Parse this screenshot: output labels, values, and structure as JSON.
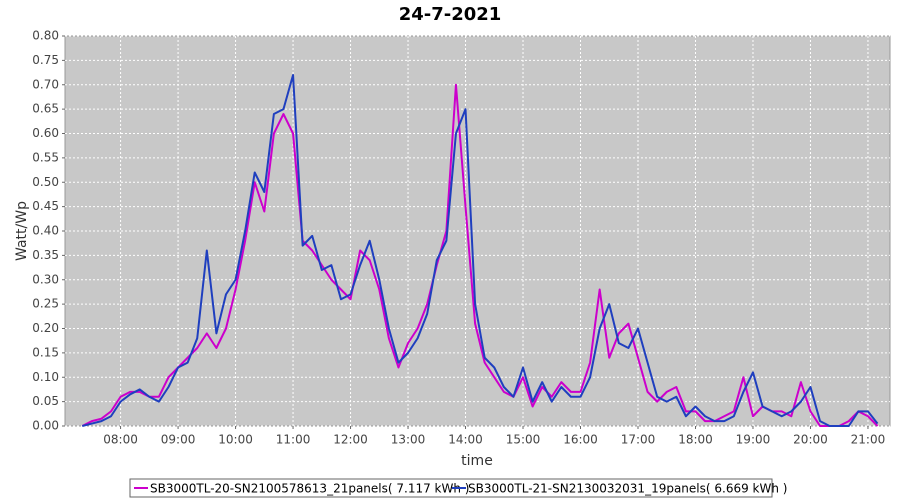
{
  "chart_data": {
    "type": "line",
    "title": "24-7-2021",
    "x_label": "time",
    "y_label": "Watt/Wp",
    "x": [
      "07:20",
      "07:30",
      "07:40",
      "07:50",
      "08:00",
      "08:10",
      "08:20",
      "08:30",
      "08:40",
      "08:50",
      "09:00",
      "09:10",
      "09:20",
      "09:30",
      "09:40",
      "09:50",
      "10:00",
      "10:10",
      "10:20",
      "10:30",
      "10:40",
      "10:50",
      "11:00",
      "11:10",
      "11:20",
      "11:30",
      "11:40",
      "11:50",
      "12:00",
      "12:10",
      "12:20",
      "12:30",
      "12:40",
      "12:50",
      "13:00",
      "13:10",
      "13:20",
      "13:30",
      "13:40",
      "13:50",
      "14:00",
      "14:10",
      "14:20",
      "14:30",
      "14:40",
      "14:50",
      "15:00",
      "15:10",
      "15:20",
      "15:30",
      "15:40",
      "15:50",
      "16:00",
      "16:10",
      "16:20",
      "16:30",
      "16:40",
      "16:50",
      "17:00",
      "17:10",
      "17:20",
      "17:30",
      "17:40",
      "17:50",
      "18:00",
      "18:10",
      "18:20",
      "18:30",
      "18:40",
      "18:50",
      "19:00",
      "19:10",
      "19:20",
      "19:30",
      "19:40",
      "19:50",
      "20:00",
      "20:10",
      "20:20",
      "20:30",
      "20:40",
      "20:50",
      "21:00",
      "21:10"
    ],
    "series": [
      {
        "name": "SB3000TL-20-SN2100578613_21panels( 7.117 kWh )",
        "color": "#cc00cc",
        "values": [
          0,
          0.01,
          0.015,
          0.03,
          0.06,
          0.07,
          0.07,
          0.06,
          0.06,
          0.1,
          0.12,
          0.14,
          0.16,
          0.19,
          0.16,
          0.2,
          0.28,
          0.38,
          0.5,
          0.44,
          0.6,
          0.64,
          0.6,
          0.38,
          0.36,
          0.33,
          0.3,
          0.28,
          0.26,
          0.36,
          0.34,
          0.28,
          0.18,
          0.12,
          0.17,
          0.2,
          0.25,
          0.33,
          0.4,
          0.7,
          0.45,
          0.21,
          0.13,
          0.1,
          0.07,
          0.06,
          0.1,
          0.04,
          0.08,
          0.06,
          0.09,
          0.07,
          0.07,
          0.13,
          0.28,
          0.14,
          0.19,
          0.21,
          0.14,
          0.07,
          0.05,
          0.07,
          0.08,
          0.03,
          0.03,
          0.01,
          0.01,
          0.02,
          0.03,
          0.1,
          0.02,
          0.04,
          0.03,
          0.03,
          0.02,
          0.09,
          0.03,
          0,
          0,
          0,
          0.01,
          0.03,
          0.02,
          0
        ]
      },
      {
        "name": "SB3000TL-21-SN2130032031_19panels( 6.669 kWh )",
        "color": "#1f3fbf",
        "values": [
          0,
          0.005,
          0.01,
          0.02,
          0.05,
          0.065,
          0.075,
          0.06,
          0.05,
          0.08,
          0.12,
          0.13,
          0.18,
          0.36,
          0.19,
          0.27,
          0.3,
          0.4,
          0.52,
          0.48,
          0.64,
          0.65,
          0.72,
          0.37,
          0.39,
          0.32,
          0.33,
          0.26,
          0.27,
          0.33,
          0.38,
          0.3,
          0.2,
          0.13,
          0.15,
          0.18,
          0.23,
          0.34,
          0.38,
          0.6,
          0.65,
          0.25,
          0.14,
          0.12,
          0.08,
          0.06,
          0.12,
          0.05,
          0.09,
          0.05,
          0.08,
          0.06,
          0.06,
          0.1,
          0.2,
          0.25,
          0.17,
          0.16,
          0.2,
          0.13,
          0.06,
          0.05,
          0.06,
          0.02,
          0.04,
          0.02,
          0.01,
          0.01,
          0.02,
          0.07,
          0.11,
          0.04,
          0.03,
          0.02,
          0.03,
          0.05,
          0.08,
          0.01,
          0,
          0,
          0,
          0.03,
          0.03,
          0.005
        ]
      }
    ],
    "xlim": [
      "07:02",
      "21:23"
    ],
    "xticks": [
      "08:00",
      "09:00",
      "10:00",
      "11:00",
      "12:00",
      "13:00",
      "14:00",
      "15:00",
      "16:00",
      "17:00",
      "18:00",
      "19:00",
      "20:00",
      "21:00"
    ],
    "ylim": [
      0,
      0.8
    ],
    "yticks": [
      {
        "value": 0,
        "label": "0.00"
      },
      {
        "value": 0.05,
        "label": "0.05"
      },
      {
        "value": 0.1,
        "label": "0.10"
      },
      {
        "value": 0.15,
        "label": "0.15"
      },
      {
        "value": 0.2,
        "label": "0.20"
      },
      {
        "value": 0.25,
        "label": "0.25"
      },
      {
        "value": 0.3,
        "label": "0.30"
      },
      {
        "value": 0.35,
        "label": "0.35"
      },
      {
        "value": 0.4,
        "label": "0.40"
      },
      {
        "value": 0.45,
        "label": "0.45"
      },
      {
        "value": 0.5,
        "label": "0.50"
      },
      {
        "value": 0.55,
        "label": "0.55"
      },
      {
        "value": 0.6,
        "label": "0.60"
      },
      {
        "value": 0.65,
        "label": "0.65"
      },
      {
        "value": 0.7,
        "label": "0.70"
      },
      {
        "value": 0.75,
        "label": "0.75"
      },
      {
        "value": 0.8,
        "label": "0.80"
      }
    ],
    "grid": true,
    "legend": "bottom"
  }
}
